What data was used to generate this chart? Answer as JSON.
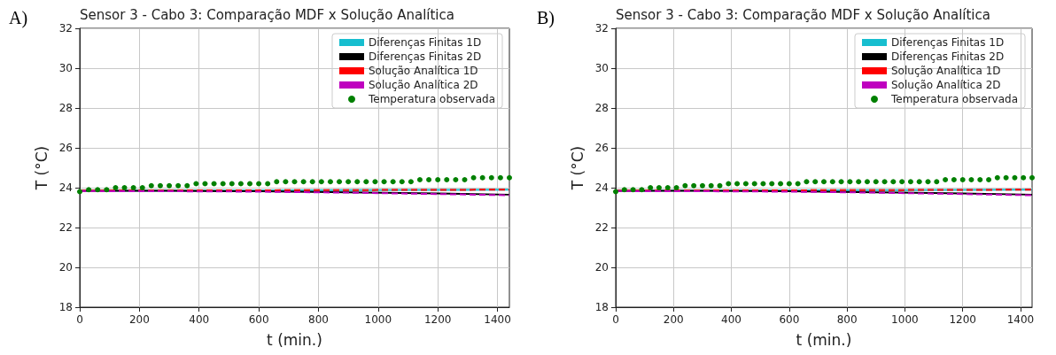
{
  "chart_data": [
    {
      "type": "line",
      "title": "Sensor 3 - Cabo 3: Comparação MDF x Solução Analítica",
      "xlabel": "t (min.)",
      "ylabel": "T (°C)",
      "annotations": [
        "A)"
      ],
      "xlim": [
        0,
        1440
      ],
      "xticks": [
        0,
        200,
        400,
        600,
        800,
        1000,
        1200,
        1400
      ],
      "ylim": [
        18,
        32
      ],
      "yticks": [
        18,
        20,
        22,
        24,
        26,
        28,
        30,
        32
      ],
      "grid": true,
      "legend": "top right",
      "series": [
        {
          "name": "Diferenças Finitas 1D",
          "color": "#17becf",
          "line_style": "solid",
          "x": [
            0,
            300,
            600,
            900,
            1200,
            1440
          ],
          "values": [
            23.85,
            23.86,
            23.87,
            23.88,
            23.89,
            23.9
          ]
        },
        {
          "name": "Diferenças Finitas 2D",
          "color": "#000000",
          "line_style": "solid",
          "x": [
            0,
            300,
            600,
            900,
            1200,
            1440
          ],
          "values": [
            23.85,
            23.84,
            23.82,
            23.77,
            23.71,
            23.65
          ]
        },
        {
          "name": "Solução Analítica 1D",
          "color": "#ff0000",
          "line_style": "dashed",
          "x": [
            0,
            300,
            600,
            900,
            1200,
            1440
          ],
          "values": [
            23.85,
            23.86,
            23.87,
            23.88,
            23.89,
            23.9
          ]
        },
        {
          "name": "Solução Analítica 2D",
          "color": "#bf00bf",
          "line_style": "dashed",
          "x": [
            0,
            300,
            600,
            900,
            1200,
            1440
          ],
          "values": [
            23.83,
            23.82,
            23.8,
            23.75,
            23.68,
            23.62
          ]
        },
        {
          "name": "Temperatura observada",
          "type": "scatter",
          "color": "#008000",
          "marker": "circle",
          "x": [
            0,
            30,
            60,
            90,
            120,
            150,
            180,
            210,
            240,
            270,
            300,
            330,
            360,
            390,
            420,
            450,
            480,
            510,
            540,
            570,
            600,
            630,
            660,
            690,
            720,
            750,
            780,
            810,
            840,
            870,
            900,
            930,
            960,
            990,
            1020,
            1050,
            1080,
            1110,
            1140,
            1170,
            1200,
            1230,
            1260,
            1290,
            1320,
            1350,
            1380,
            1410,
            1440
          ],
          "values": [
            23.8,
            23.9,
            23.9,
            23.9,
            24.0,
            24.0,
            24.0,
            24.0,
            24.1,
            24.1,
            24.1,
            24.1,
            24.1,
            24.2,
            24.2,
            24.2,
            24.2,
            24.2,
            24.2,
            24.2,
            24.2,
            24.2,
            24.3,
            24.3,
            24.3,
            24.3,
            24.3,
            24.3,
            24.3,
            24.3,
            24.3,
            24.3,
            24.3,
            24.3,
            24.3,
            24.3,
            24.3,
            24.3,
            24.4,
            24.4,
            24.4,
            24.4,
            24.4,
            24.4,
            24.5,
            24.5,
            24.5,
            24.5,
            24.5
          ]
        }
      ]
    },
    {
      "type": "line",
      "title": "Sensor 3 - Cabo 3: Comparação MDF x Solução Analítica",
      "xlabel": "t (min.)",
      "ylabel": "T (°C)",
      "annotations": [
        "B)"
      ],
      "xlim": [
        0,
        1440
      ],
      "xticks": [
        0,
        200,
        400,
        600,
        800,
        1000,
        1200,
        1400
      ],
      "ylim": [
        18,
        32
      ],
      "yticks": [
        18,
        20,
        22,
        24,
        26,
        28,
        30,
        32
      ],
      "grid": true,
      "legend": "top right",
      "series": [
        {
          "name": "Diferenças Finitas 1D",
          "color": "#17becf",
          "line_style": "solid",
          "x": [
            0,
            300,
            600,
            900,
            1200,
            1440
          ],
          "values": [
            23.85,
            23.86,
            23.87,
            23.88,
            23.89,
            23.9
          ]
        },
        {
          "name": "Diferenças Finitas 2D",
          "color": "#000000",
          "line_style": "solid",
          "x": [
            0,
            300,
            600,
            900,
            1200,
            1440
          ],
          "values": [
            23.85,
            23.84,
            23.82,
            23.77,
            23.71,
            23.65
          ]
        },
        {
          "name": "Solução Analítica 1D",
          "color": "#ff0000",
          "line_style": "dashed",
          "x": [
            0,
            300,
            600,
            900,
            1200,
            1440
          ],
          "values": [
            23.85,
            23.86,
            23.87,
            23.88,
            23.89,
            23.9
          ]
        },
        {
          "name": "Solução Analítica 2D",
          "color": "#bf00bf",
          "line_style": "dashed",
          "x": [
            0,
            300,
            600,
            900,
            1200,
            1440
          ],
          "values": [
            23.83,
            23.82,
            23.8,
            23.75,
            23.68,
            23.62
          ]
        },
        {
          "name": "Temperatura observada",
          "type": "scatter",
          "color": "#008000",
          "marker": "circle",
          "x": [
            0,
            30,
            60,
            90,
            120,
            150,
            180,
            210,
            240,
            270,
            300,
            330,
            360,
            390,
            420,
            450,
            480,
            510,
            540,
            570,
            600,
            630,
            660,
            690,
            720,
            750,
            780,
            810,
            840,
            870,
            900,
            930,
            960,
            990,
            1020,
            1050,
            1080,
            1110,
            1140,
            1170,
            1200,
            1230,
            1260,
            1290,
            1320,
            1350,
            1380,
            1410,
            1440
          ],
          "values": [
            23.8,
            23.9,
            23.9,
            23.9,
            24.0,
            24.0,
            24.0,
            24.0,
            24.1,
            24.1,
            24.1,
            24.1,
            24.1,
            24.2,
            24.2,
            24.2,
            24.2,
            24.2,
            24.2,
            24.2,
            24.2,
            24.2,
            24.3,
            24.3,
            24.3,
            24.3,
            24.3,
            24.3,
            24.3,
            24.3,
            24.3,
            24.3,
            24.3,
            24.3,
            24.3,
            24.3,
            24.3,
            24.3,
            24.4,
            24.4,
            24.4,
            24.4,
            24.4,
            24.4,
            24.5,
            24.5,
            24.5,
            24.5,
            24.5
          ]
        }
      ]
    }
  ]
}
